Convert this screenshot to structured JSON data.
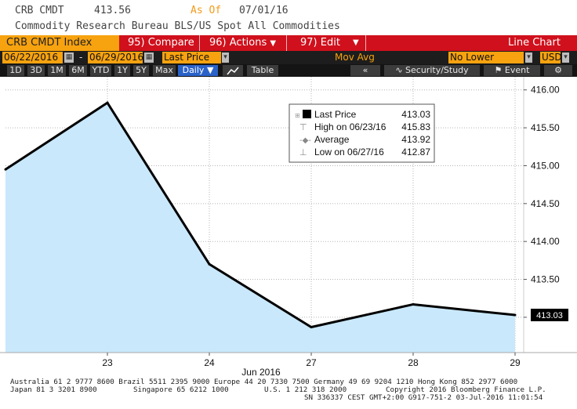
{
  "header": {
    "ticker": "CRB CMDT",
    "price": "413.56",
    "as_of_label": "As Of",
    "as_of_date": "07/01/16",
    "description": "Commodity Research Bureau BLS/US Spot All Commodities"
  },
  "toolbar": {
    "index_label": "CRB CMDT Index",
    "compare": {
      "num": "95)",
      "label": "Compare"
    },
    "actions": {
      "num": "96)",
      "label": "Actions"
    },
    "edit": {
      "num": "97)",
      "label": "Edit"
    },
    "chart_type": "Line Chart"
  },
  "controls": {
    "start_date": "06/22/2016",
    "end_date": "06/29/2016",
    "dash": "-",
    "field": "Last Price",
    "mov_avg": "Mov Avg",
    "lower_chart": "No Lower Chart",
    "currency": "USD"
  },
  "periods": [
    "1D",
    "3D",
    "1M",
    "6M",
    "YTD",
    "1Y",
    "5Y",
    "Max"
  ],
  "frequency": "Daily",
  "table_label": "Table",
  "security_study": "Security/Study",
  "event": "Event",
  "colors": {
    "accent": "#f7a20f",
    "brand": "#d0101c",
    "area": "#c9e8fb",
    "line": "#000000"
  },
  "chart_data": {
    "type": "area",
    "x": [
      "06/22/16",
      "06/23/16",
      "06/24/16",
      "06/27/16",
      "06/28/16",
      "06/29/16"
    ],
    "values": [
      414.95,
      415.83,
      413.7,
      412.87,
      413.17,
      413.03
    ],
    "xticks": [
      {
        "label": "23",
        "index": 1
      },
      {
        "label": "24",
        "index": 2
      },
      {
        "label": "27",
        "index": 3
      },
      {
        "label": "28",
        "index": 4
      },
      {
        "label": "29",
        "index": 5
      }
    ],
    "xlabel": "Jun 2016",
    "ylim": [
      412.58,
      416.08
    ],
    "yticks": [
      "416.00",
      "415.50",
      "415.00",
      "414.50",
      "414.00",
      "413.50",
      "413.00"
    ],
    "last_value_label": "413.03",
    "grid": true,
    "legend": {
      "placement": "top-right",
      "items": [
        {
          "label": "Last Price",
          "value": "413.03"
        },
        {
          "label": "High on 06/23/16",
          "value": "415.83"
        },
        {
          "label": "Average",
          "value": "413.92"
        },
        {
          "label": "Low on 06/27/16",
          "value": "412.87"
        }
      ]
    }
  },
  "footer": {
    "line1": "Australia 61 2 9777 8600 Brazil 5511 2395 9000 Europe 44 20 7330 7500 Germany 49 69 9204 1210 Hong Kong 852 2977 6000",
    "line2a": "Japan 81 3 3201 8900",
    "line2b": "Singapore 65 6212 1000",
    "line2c": "U.S. 1 212 318 2000",
    "line2d": "Copyright 2016 Bloomberg Finance L.P.",
    "line3": "SN 336337 CEST GMT+2:00 G917-751-2 03-Jul-2016 11:01:54"
  }
}
